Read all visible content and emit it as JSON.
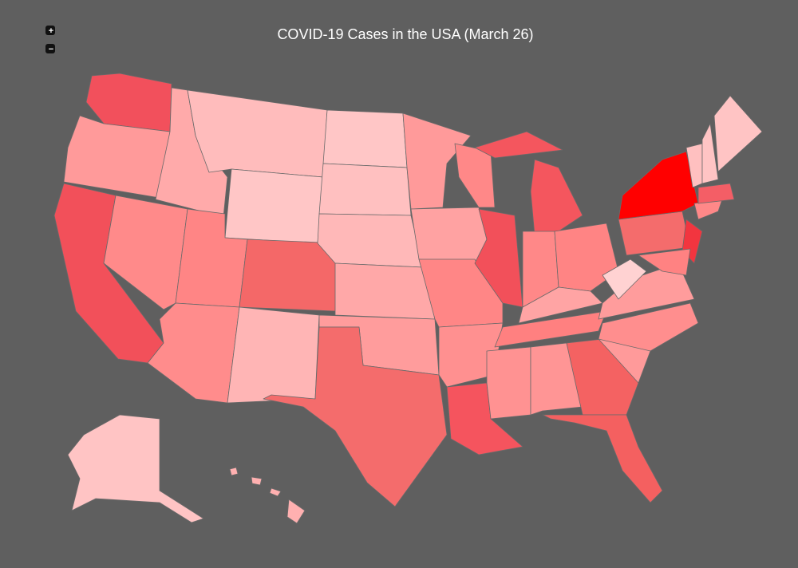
{
  "title": "COVID-19 Cases in the USA (March 26)",
  "controls": {
    "zoom_in": "+",
    "zoom_out": "−"
  }
}
